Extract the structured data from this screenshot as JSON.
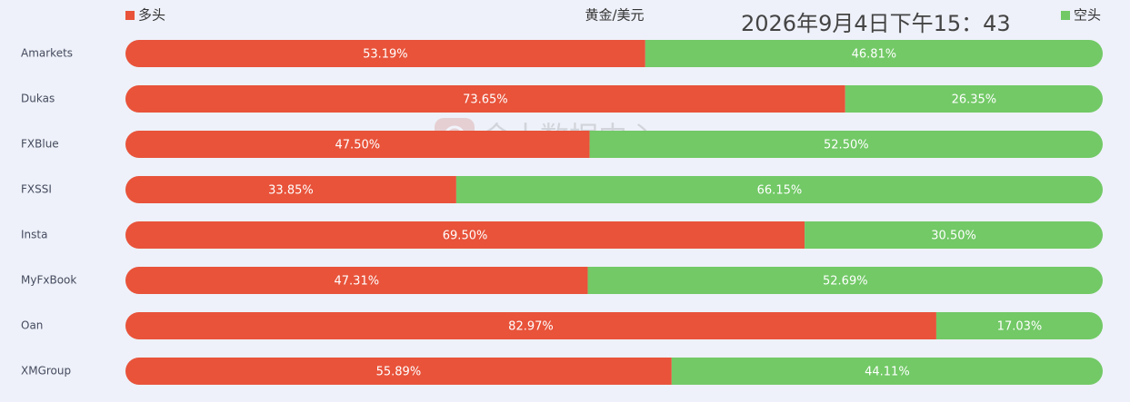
{
  "chart_data": {
    "type": "stacked-bar-horizontal",
    "title": "黄金/美元",
    "annotation": "2026年9月4日下午15：43",
    "watermark": "金十数据中心",
    "categories": [
      "Amarkets",
      "Dukas",
      "FXBlue",
      "FXSSI",
      "Insta",
      "MyFxBook",
      "Oan",
      "XMGroup"
    ],
    "xlim": [
      0,
      100
    ],
    "legend_position": "top",
    "series": [
      {
        "name": "多头",
        "color": "#e8533a",
        "values": [
          53.19,
          73.65,
          47.5,
          33.85,
          69.5,
          47.31,
          82.97,
          55.89
        ],
        "value_labels": [
          "53.19%",
          "73.65%",
          "47.50%",
          "33.85%",
          "69.50%",
          "47.31%",
          "82.97%",
          "55.89%"
        ]
      },
      {
        "name": "空头",
        "color": "#72c966",
        "values": [
          46.81,
          26.35,
          52.5,
          66.15,
          30.5,
          52.69,
          17.03,
          44.11
        ],
        "value_labels": [
          "46.81%",
          "26.35%",
          "52.50%",
          "66.15%",
          "30.50%",
          "52.69%",
          "17.03%",
          "44.11%"
        ]
      }
    ]
  }
}
